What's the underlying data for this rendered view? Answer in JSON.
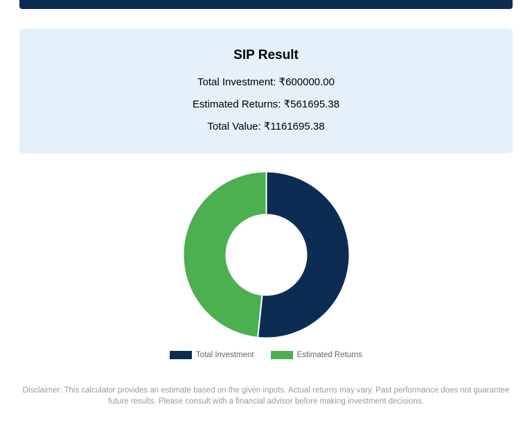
{
  "result": {
    "title": "SIP Result",
    "lines": [
      {
        "label": "Total Investment",
        "value": "₹600000.00"
      },
      {
        "label": "Estimated Returns",
        "value": "₹561695.38"
      },
      {
        "label": "Total Value",
        "value": "₹1161695.38"
      }
    ]
  },
  "chart": {
    "type": "donut",
    "size": 245,
    "inner_radius": 58,
    "outer_radius": 120,
    "background": "#ffffff",
    "slices": [
      {
        "label": "Total Investment",
        "value": 600000.0,
        "color": "#0d2c54"
      },
      {
        "label": "Estimated Returns",
        "value": 561695.38,
        "color": "#4caf50"
      }
    ],
    "legend": {
      "swatch_width": 32,
      "swatch_height": 12,
      "font_size": 11.5,
      "text_color": "#666666"
    }
  },
  "disclaimer": "Disclaimer: This calculator provides an estimate based on the given inputs. Actual returns may vary. Past performance does not guarantee future results. Please consult with a financial advisor before making investment decisions.",
  "colors": {
    "top_bar": "#0d2c54",
    "card_bg": "#e6f0fa"
  }
}
